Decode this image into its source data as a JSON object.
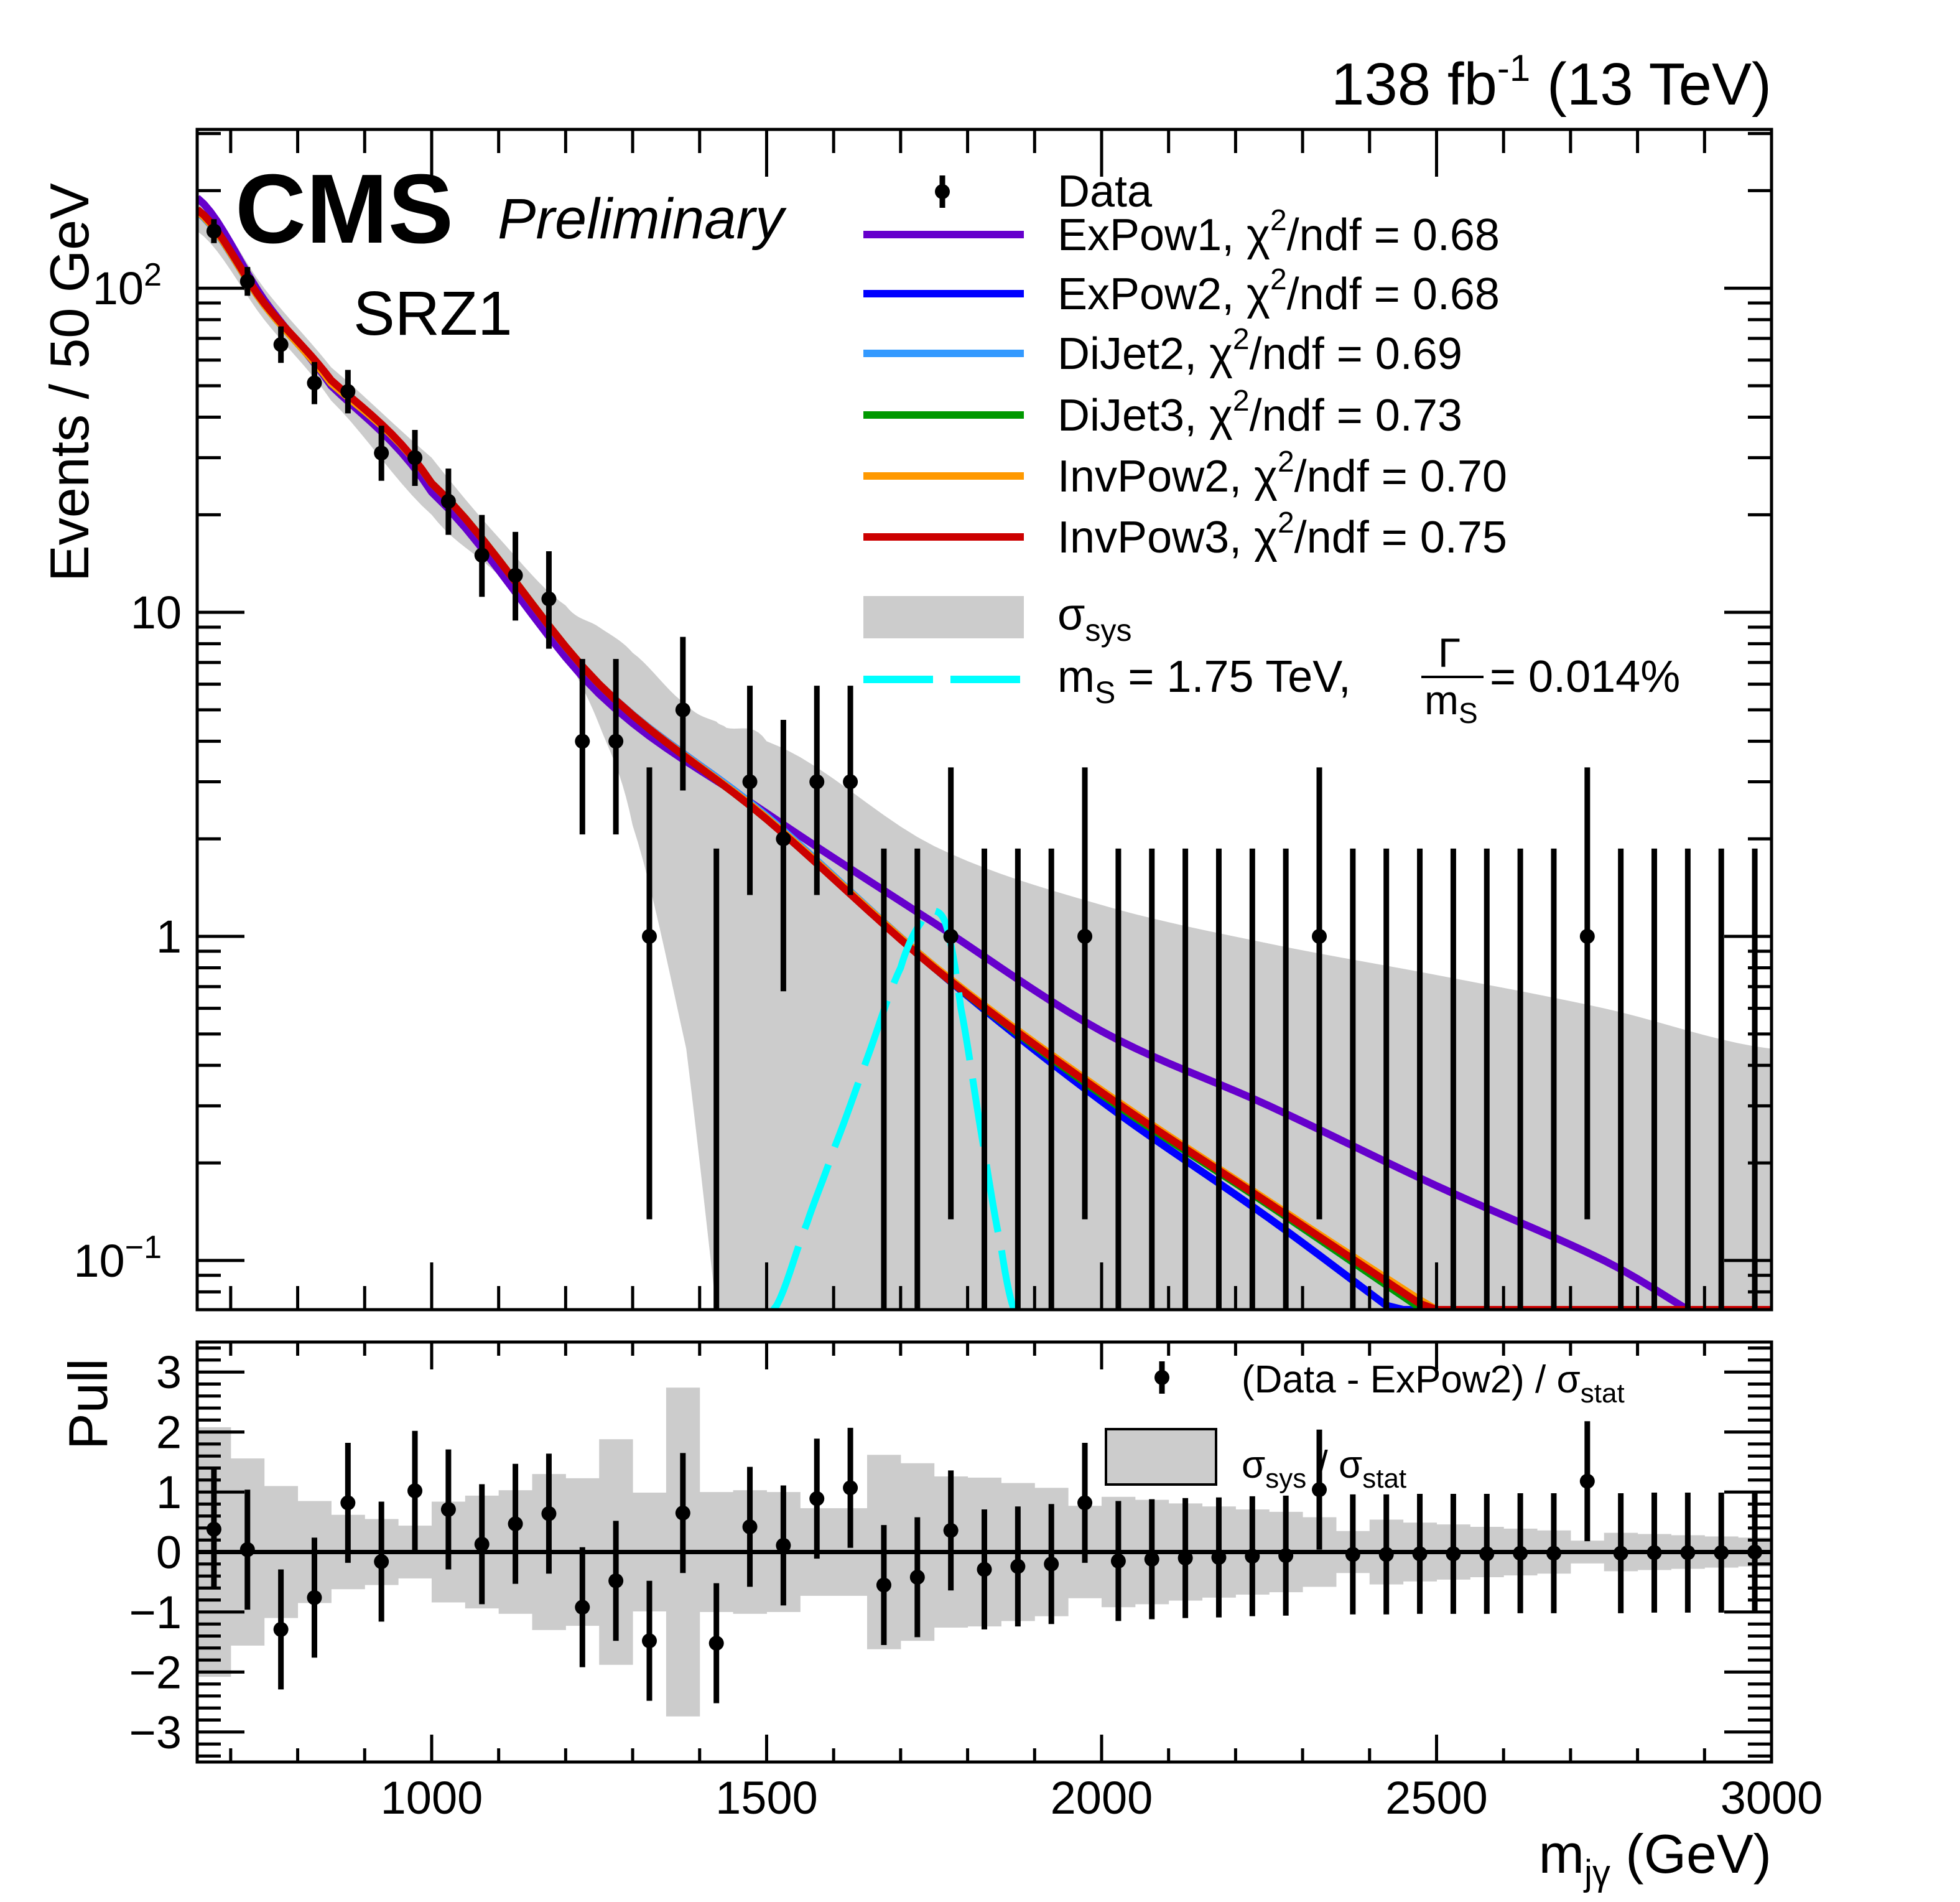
{
  "header": {
    "lumi_value": "138 fb",
    "lumi_sup": "-1",
    "energy": " (13 TeV)",
    "experiment": "CMS",
    "status": "Preliminary",
    "region": "SRZ1"
  },
  "chart_data": [
    {
      "type": "scatter",
      "panel": "main",
      "xlabel_main": "m",
      "xlabel_sub": "jγ",
      "xlabel_unit": " (GeV)",
      "ylabel": "Events / 50 GeV",
      "xlim": [
        650,
        3000
      ],
      "ylim": [
        0.0705,
        309
      ],
      "yscale": "log",
      "x_ticks": [
        "1000",
        "1500",
        "2000",
        "2500",
        "3000"
      ],
      "y_ticks": [
        {
          "value": 100,
          "base": "10",
          "sup": "2"
        },
        {
          "value": 10,
          "base": "10",
          "sup": ""
        },
        {
          "value": 1,
          "base": "1",
          "sup": ""
        },
        {
          "value": 0.1,
          "base": "10",
          "sup": "−1"
        }
      ],
      "data": {
        "name": "Data",
        "bin_width": 50,
        "x": [
          675,
          725,
          775,
          825,
          875,
          925,
          975,
          1025,
          1075,
          1125,
          1175,
          1225,
          1275,
          1325,
          1375,
          1425,
          1475,
          1525,
          1575,
          1625,
          1675,
          1725,
          1775,
          1825,
          1875,
          1925,
          1975,
          2025,
          2075,
          2125,
          2175,
          2225,
          2275,
          2325,
          2375,
          2425,
          2475,
          2525,
          2575,
          2625,
          2675,
          2725,
          2775,
          2825,
          2875,
          2925,
          2975
        ],
        "y": [
          150,
          105,
          67,
          51,
          48,
          31,
          30,
          22,
          15,
          13,
          11,
          4,
          4,
          1,
          5,
          0,
          3,
          2,
          3,
          3,
          0,
          0,
          1,
          0,
          0,
          0,
          1,
          0,
          0,
          0,
          0,
          0,
          0,
          1,
          0,
          0,
          0,
          0,
          0,
          0,
          0,
          1,
          0,
          0,
          0,
          0,
          0
        ]
      },
      "fits": {
        "x": [
          650,
          750,
          850,
          1000,
          1250,
          1500,
          1750,
          2000,
          2250,
          2500,
          2750,
          3000
        ],
        "series": [
          {
            "name": "ExPow1",
            "chi2ndf": "0.68",
            "color": "#6600cc",
            "y": [
              190,
              92,
              50,
              23.5,
              5.6,
              2.4,
              1.1,
              0.51,
              0.3,
              0.17,
              0.1,
              0.053
            ]
          },
          {
            "name": "ExPow2",
            "chi2ndf": "0.68",
            "color": "#0000ff",
            "y": [
              172,
              89,
              51,
              25,
              6.0,
              2.35,
              0.8,
              0.31,
              0.135,
              0.056,
              0.025,
              0.011
            ]
          },
          {
            "name": "DiJet2",
            "chi2ndf": "0.69",
            "color": "#3399ff",
            "y": [
              172,
              89,
              51,
              25,
              6.0,
              2.35,
              0.81,
              0.33,
              0.148,
              0.066,
              0.03,
              0.014
            ]
          },
          {
            "name": "DiJet3",
            "chi2ndf": "0.73",
            "color": "#009900",
            "y": [
              173,
              89,
              51,
              25,
              6.0,
              2.3,
              0.8,
              0.325,
              0.148,
              0.066,
              0.03,
              0.014
            ]
          },
          {
            "name": "InvPow2",
            "chi2ndf": "0.70",
            "color": "#ff9900",
            "y": [
              173,
              89,
              51,
              25,
              6.0,
              2.32,
              0.81,
              0.335,
              0.152,
              0.07,
              0.033,
              0.016
            ]
          },
          {
            "name": "InvPow3",
            "chi2ndf": "0.75",
            "color": "#cc0000",
            "y": [
              175,
              90,
              52,
              25,
              6.0,
              2.3,
              0.8,
              0.33,
              0.15,
              0.068,
              0.031,
              0.015
            ]
          }
        ]
      },
      "sys_band": {
        "label": "σ",
        "label_sub": "sys",
        "color": "#cccccc",
        "x": [
          650,
          750,
          850,
          1000,
          1100,
          1200,
          1250,
          1300,
          1380,
          1425,
          1440,
          1500,
          1750,
          2000,
          2250,
          2500,
          2750,
          3000
        ],
        "upper": [
          195,
          100,
          57,
          30,
          17,
          10.5,
          9,
          7.5,
          5.2,
          4.6,
          4.4,
          4.0,
          1.9,
          1.25,
          0.95,
          0.76,
          0.6,
          0.45
        ],
        "lower": [
          150,
          80,
          45,
          20,
          13,
          7.5,
          4.5,
          2.2,
          0.45,
          0.07,
          0.01,
          0.01,
          0.01,
          0.01,
          0.01,
          0.01,
          0.01,
          0.01
        ]
      },
      "signal": {
        "color": "#00ffff",
        "label_m": "m",
        "label_m_sub": "S",
        "label_mass": " = 1.75 TeV, ",
        "label_frac_num": "Γ",
        "label_frac_den": "m",
        "label_frac_den_sub": "S",
        "label_width": " = 0.014%",
        "x": [
          1510,
          1560,
          1600,
          1650,
          1700,
          1730,
          1750,
          1770,
          1790,
          1820,
          1850,
          1870
        ],
        "y": [
          0.07,
          0.13,
          0.22,
          0.42,
          0.8,
          1.1,
          1.2,
          1.05,
          0.6,
          0.25,
          0.11,
          0.07
        ]
      },
      "legend": {
        "placement": "top-right",
        "data_label": "Data",
        "chi_sym": "χ",
        "chi_sup": "2",
        "ndf_text": "/ndf = "
      }
    },
    {
      "type": "scatter",
      "panel": "pull",
      "ylabel": "Pull",
      "ylim": [
        -3.5,
        3.5
      ],
      "y_ticks": [
        "3",
        "2",
        "1",
        "0",
        "−1",
        "−2",
        "−3"
      ],
      "y_tick_values": [
        3,
        2,
        1,
        0,
        -1,
        -2,
        -3
      ],
      "pull_label": "(Data - ExPow2) / σ",
      "pull_label_sub": "stat",
      "band_label_a": "σ",
      "band_label_a_sub": "sys",
      "band_label_b": " / σ",
      "band_label_b_sub": "stat",
      "x": [
        675,
        725,
        775,
        825,
        875,
        925,
        975,
        1025,
        1075,
        1125,
        1175,
        1225,
        1275,
        1325,
        1375,
        1425,
        1475,
        1525,
        1575,
        1625,
        1675,
        1725,
        1775,
        1825,
        1875,
        1925,
        1975,
        2025,
        2075,
        2125,
        2175,
        2225,
        2275,
        2325,
        2375,
        2425,
        2475,
        2525,
        2575,
        2625,
        2675,
        2725,
        2775,
        2825,
        2875,
        2925,
        2975
      ],
      "pull": [
        0.38,
        0.04,
        -1.29,
        -0.76,
        0.82,
        -0.16,
        1.02,
        0.71,
        0.13,
        0.47,
        0.64,
        -0.92,
        -0.48,
        -1.48,
        0.65,
        -1.52,
        0.42,
        0.11,
        0.89,
        1.07,
        -0.55,
        -0.42,
        0.36,
        -0.29,
        -0.24,
        -0.2,
        0.82,
        -0.15,
        -0.12,
        -0.1,
        -0.09,
        -0.07,
        -0.06,
        1.04,
        -0.04,
        -0.04,
        -0.03,
        -0.03,
        -0.03,
        -0.02,
        -0.02,
        1.18,
        -0.02,
        -0.01,
        -0.01,
        -0.01,
        0
      ],
      "sys_over_stat": [
        2.08,
        1.56,
        1.1,
        0.85,
        0.62,
        0.55,
        0.44,
        0.84,
        0.94,
        1.03,
        1.3,
        1.23,
        1.88,
        0.99,
        2.74,
        1.0,
        1.03,
        1.0,
        0.73,
        0.73,
        1.62,
        1.48,
        1.26,
        1.24,
        1.15,
        1.07,
        0.77,
        0.92,
        0.87,
        0.81,
        0.76,
        0.71,
        0.67,
        0.58,
        0.35,
        0.54,
        0.49,
        0.46,
        0.42,
        0.39,
        0.36,
        0.19,
        0.32,
        0.3,
        0.28,
        0.26,
        0.24
      ]
    }
  ]
}
